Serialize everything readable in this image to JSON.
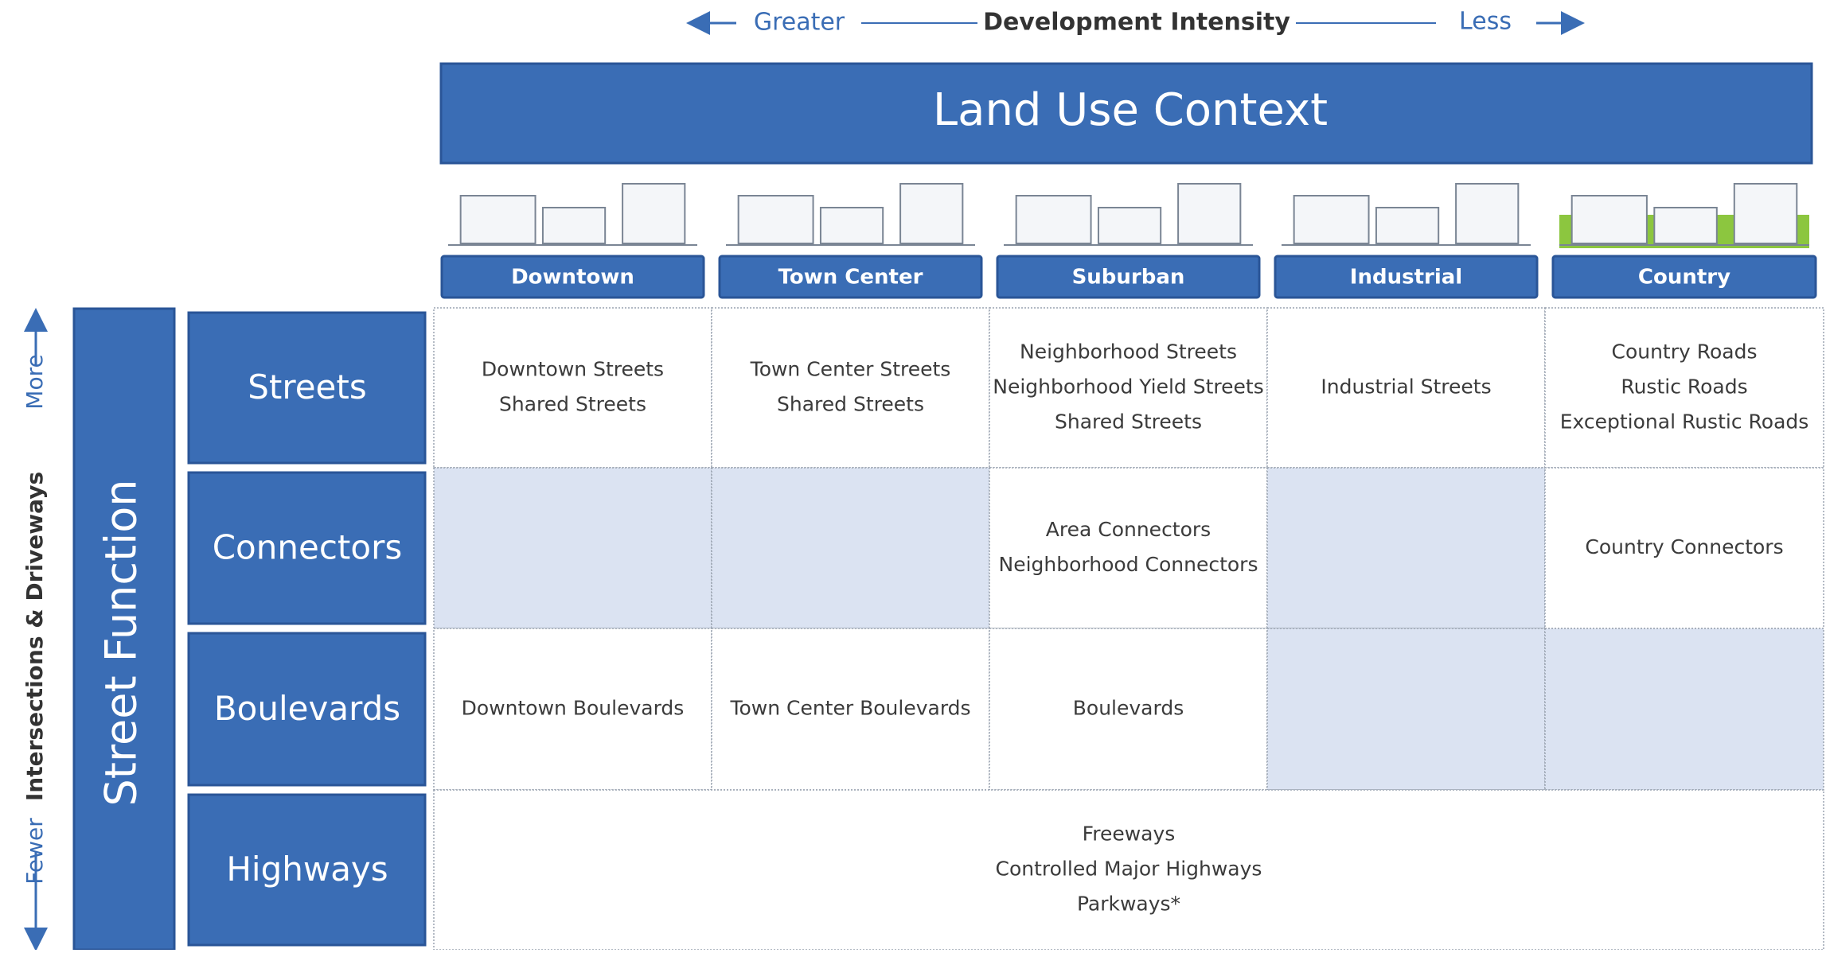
{
  "header": {
    "greater": "Greater",
    "title": "Development Intensity",
    "less": "Less"
  },
  "land_use_title": "Land Use Context",
  "contexts": [
    "Downtown",
    "Town Center",
    "Suburban",
    "Industrial",
    "Country"
  ],
  "side": {
    "fewer": "Fewer",
    "axis": "Intersections & Driveways",
    "more": "More"
  },
  "street_function": "Street Function",
  "rows": [
    {
      "label": "Streets",
      "cells": [
        [
          "Downtown Streets",
          "Shared Streets"
        ],
        [
          "Town Center Streets",
          "Shared Streets"
        ],
        [
          "Neighborhood Streets",
          "Neighborhood Yield Streets",
          "Shared Streets"
        ],
        [
          "Industrial Streets"
        ],
        [
          "Country Roads",
          "Rustic Roads",
          "Exceptional Rustic Roads"
        ]
      ]
    },
    {
      "label": "Connectors",
      "cells": [
        null,
        null,
        [
          "Area Connectors",
          "Neighborhood Connectors"
        ],
        null,
        [
          "Country Connectors"
        ]
      ]
    },
    {
      "label": "Boulevards",
      "cells": [
        [
          "Downtown Boulevards"
        ],
        [
          "Town Center Boulevards"
        ],
        [
          "Boulevards"
        ],
        null,
        null
      ]
    },
    {
      "label": "Highways",
      "cells": [
        [
          "Freeways",
          "Controlled Major Highways",
          "Parkways*"
        ]
      ]
    }
  ]
}
